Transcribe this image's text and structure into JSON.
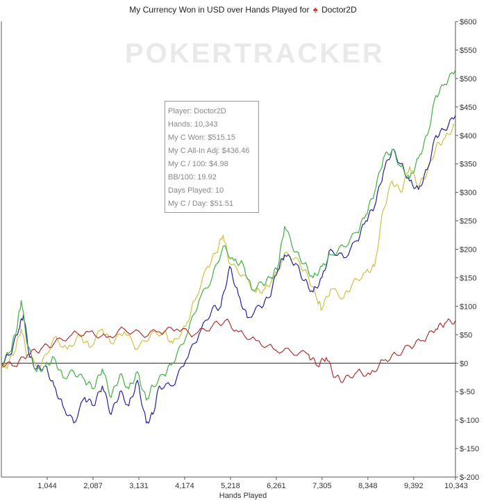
{
  "chart_data": {
    "type": "line",
    "title": "My Currency Won in USD over Hands Played for",
    "title_player": "Doctor2D",
    "title_icon": "spade-icon",
    "watermark": "POKERTRACKER",
    "xlabel": "Hands Played",
    "ylabel": "",
    "xlim": [
      0,
      10343
    ],
    "ylim": [
      -200,
      600
    ],
    "x_ticks": [
      "1,044",
      "2,087",
      "3,131",
      "4,174",
      "5,218",
      "6,261",
      "7,305",
      "8,348",
      "9,392",
      "10,343"
    ],
    "x_tick_values": [
      1044,
      2087,
      3131,
      4174,
      5218,
      6261,
      7305,
      8348,
      9392,
      10343
    ],
    "y_ticks": [
      "$600",
      "$550",
      "$500",
      "$450",
      "$400",
      "$350",
      "$300",
      "$250",
      "$200",
      "$150",
      "$100",
      "$50",
      "$0",
      "$-50",
      "$-100",
      "$-150",
      "$-200"
    ],
    "y_tick_values": [
      600,
      550,
      500,
      450,
      400,
      350,
      300,
      250,
      200,
      150,
      100,
      50,
      0,
      -50,
      -100,
      -150,
      -200
    ],
    "grid": false,
    "zero_line": true,
    "legend": "none",
    "series": [
      {
        "color": "#d0c040",
        "points": [
          [
            0,
            0
          ],
          [
            100,
            -8
          ],
          [
            300,
            20
          ],
          [
            450,
            60
          ],
          [
            600,
            10
          ],
          [
            900,
            -5
          ],
          [
            1200,
            45
          ],
          [
            1500,
            25
          ],
          [
            1800,
            50
          ],
          [
            2000,
            28
          ],
          [
            2300,
            60
          ],
          [
            2500,
            35
          ],
          [
            2800,
            55
          ],
          [
            3100,
            25
          ],
          [
            3400,
            50
          ],
          [
            3700,
            55
          ],
          [
            3900,
            35
          ],
          [
            4200,
            65
          ],
          [
            4400,
            110
          ],
          [
            4700,
            170
          ],
          [
            4900,
            195
          ],
          [
            5050,
            225
          ],
          [
            5200,
            175
          ],
          [
            5500,
            155
          ],
          [
            5800,
            125
          ],
          [
            6000,
            130
          ],
          [
            6200,
            150
          ],
          [
            6500,
            195
          ],
          [
            6800,
            175
          ],
          [
            7000,
            150
          ],
          [
            7200,
            110
          ],
          [
            7300,
            95
          ],
          [
            7500,
            130
          ],
          [
            7800,
            115
          ],
          [
            8000,
            140
          ],
          [
            8300,
            160
          ],
          [
            8500,
            170
          ],
          [
            8700,
            270
          ],
          [
            8900,
            320
          ],
          [
            9100,
            300
          ],
          [
            9300,
            345
          ],
          [
            9500,
            310
          ],
          [
            9700,
            335
          ],
          [
            9900,
            380
          ],
          [
            10100,
            395
          ],
          [
            10343,
            420
          ]
        ]
      },
      {
        "color": "#2020a0",
        "points": [
          [
            0,
            0
          ],
          [
            200,
            15
          ],
          [
            400,
            60
          ],
          [
            500,
            85
          ],
          [
            650,
            10
          ],
          [
            800,
            -10
          ],
          [
            1000,
            -5
          ],
          [
            1200,
            -40
          ],
          [
            1400,
            -75
          ],
          [
            1650,
            -105
          ],
          [
            1900,
            -60
          ],
          [
            2100,
            -75
          ],
          [
            2300,
            -40
          ],
          [
            2500,
            -90
          ],
          [
            2700,
            -50
          ],
          [
            2900,
            -75
          ],
          [
            3100,
            -30
          ],
          [
            3300,
            -105
          ],
          [
            3450,
            -90
          ],
          [
            3600,
            -40
          ],
          [
            3900,
            -40
          ],
          [
            4200,
            5
          ],
          [
            4500,
            50
          ],
          [
            4800,
            95
          ],
          [
            5000,
            100
          ],
          [
            5200,
            170
          ],
          [
            5400,
            120
          ],
          [
            5600,
            80
          ],
          [
            5900,
            100
          ],
          [
            6100,
            115
          ],
          [
            6300,
            165
          ],
          [
            6450,
            190
          ],
          [
            6700,
            175
          ],
          [
            6900,
            145
          ],
          [
            7100,
            125
          ],
          [
            7300,
            150
          ],
          [
            7500,
            200
          ],
          [
            7800,
            185
          ],
          [
            8100,
            215
          ],
          [
            8300,
            250
          ],
          [
            8500,
            275
          ],
          [
            8700,
            335
          ],
          [
            8900,
            375
          ],
          [
            9100,
            350
          ],
          [
            9300,
            320
          ],
          [
            9500,
            305
          ],
          [
            9700,
            340
          ],
          [
            9900,
            400
          ],
          [
            10100,
            410
          ],
          [
            10343,
            435
          ]
        ]
      },
      {
        "color": "#40b040",
        "points": [
          [
            0,
            0
          ],
          [
            200,
            20
          ],
          [
            350,
            60
          ],
          [
            450,
            110
          ],
          [
            600,
            30
          ],
          [
            800,
            -15
          ],
          [
            1000,
            -5
          ],
          [
            1200,
            10
          ],
          [
            1400,
            -25
          ],
          [
            1650,
            -15
          ],
          [
            1900,
            -30
          ],
          [
            2100,
            -45
          ],
          [
            2300,
            -10
          ],
          [
            2500,
            -60
          ],
          [
            2700,
            -20
          ],
          [
            2900,
            -45
          ],
          [
            3100,
            -15
          ],
          [
            3300,
            -65
          ],
          [
            3450,
            -40
          ],
          [
            3700,
            -20
          ],
          [
            3900,
            0
          ],
          [
            4200,
            45
          ],
          [
            4500,
            110
          ],
          [
            4800,
            150
          ],
          [
            5050,
            205
          ],
          [
            5300,
            180
          ],
          [
            5500,
            175
          ],
          [
            5700,
            130
          ],
          [
            5950,
            140
          ],
          [
            6150,
            150
          ],
          [
            6300,
            170
          ],
          [
            6450,
            240
          ],
          [
            6700,
            195
          ],
          [
            6900,
            175
          ],
          [
            7100,
            150
          ],
          [
            7300,
            170
          ],
          [
            7500,
            190
          ],
          [
            7800,
            205
          ],
          [
            8100,
            230
          ],
          [
            8300,
            260
          ],
          [
            8500,
            300
          ],
          [
            8700,
            360
          ],
          [
            8900,
            375
          ],
          [
            9100,
            345
          ],
          [
            9300,
            325
          ],
          [
            9500,
            360
          ],
          [
            9700,
            400
          ],
          [
            9900,
            470
          ],
          [
            10100,
            490
          ],
          [
            10343,
            515
          ]
        ]
      },
      {
        "color": "#b03030",
        "points": [
          [
            0,
            0
          ],
          [
            300,
            -5
          ],
          [
            600,
            15
          ],
          [
            900,
            25
          ],
          [
            1200,
            35
          ],
          [
            1600,
            50
          ],
          [
            2000,
            55
          ],
          [
            2400,
            45
          ],
          [
            2800,
            60
          ],
          [
            3200,
            50
          ],
          [
            3600,
            55
          ],
          [
            4000,
            60
          ],
          [
            4400,
            50
          ],
          [
            4800,
            65
          ],
          [
            5100,
            75
          ],
          [
            5400,
            55
          ],
          [
            5800,
            40
          ],
          [
            6200,
            25
          ],
          [
            6600,
            20
          ],
          [
            7000,
            15
          ],
          [
            7200,
            -5
          ],
          [
            7400,
            10
          ],
          [
            7600,
            -25
          ],
          [
            7800,
            -30
          ],
          [
            8100,
            -15
          ],
          [
            8400,
            -20
          ],
          [
            8700,
            5
          ],
          [
            9000,
            15
          ],
          [
            9300,
            30
          ],
          [
            9600,
            40
          ],
          [
            9900,
            60
          ],
          [
            10100,
            70
          ],
          [
            10343,
            75
          ]
        ]
      }
    ],
    "tooltip": {
      "player": "Player: Doctor2D",
      "hands": "Hands: 10,343",
      "won": "My C Won: $515.15",
      "allin": "My C All-In Adj: $436.46",
      "per100": "My C / 100: $4.98",
      "bb100": "BB/100: 19.92",
      "days": "Days Played: 10",
      "perday": "My C / Day: $51.51"
    }
  }
}
